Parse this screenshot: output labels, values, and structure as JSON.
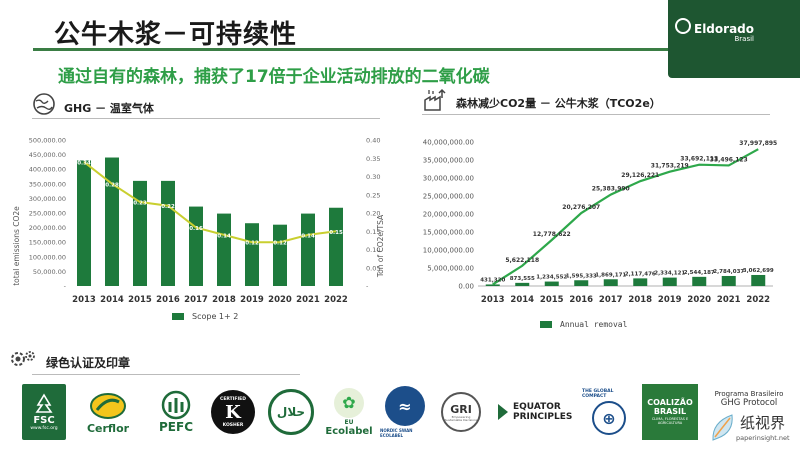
{
  "header": {
    "title": "公牛木浆－可持续性",
    "subtitle": "通过自有的森林，捕获了17倍于企业活动排放的二氧化碳",
    "brand_name": "Eldorado",
    "brand_sub": "Brasil"
  },
  "left_section": {
    "title": "GHG － 温室气体"
  },
  "right_section": {
    "title": "森林减少CO2量 － 公牛木浆（TCO2e）"
  },
  "bottom_section": {
    "title": "绿色认证及印章"
  },
  "certifications": {
    "fsc": "FSC",
    "fsc_url": "www.fsc.org",
    "cerflor": "Cerflor",
    "pefc": "PEFC",
    "kosher_top": "CERTIFIED",
    "kosher_mid": "K",
    "kosher_bottom": "KOSHER",
    "halal": "حلال",
    "ecolabel_eu": "EU",
    "ecolabel": "Ecolabel",
    "swan": "NORDIC SWAN ECOLABEL",
    "gri": "GRI",
    "gri_sub": "Empowering Sustainable Decisions",
    "equator1": "EQUATOR",
    "equator2": "PRINCIPLES",
    "global_compact": "THE GLOBAL COMPACT",
    "coalizao1": "COALIZÃO",
    "coalizao2": "BRASIL",
    "coalizao3": "CLIMA, FLORESTAS E AGRICULTURA",
    "ghg1": "Programa Brasileiro",
    "ghg2": "GHG Protocol"
  },
  "watermark": {
    "name": "纸视界",
    "url": "paperinsight.net"
  },
  "colors": {
    "bar_green": "#1e7a3c",
    "line_yellow": "#c9cf2f",
    "line_green": "#2ea84b",
    "accent": "#3a7d44"
  },
  "chart_data": [
    {
      "type": "bar",
      "categories": [
        "2013",
        "2014",
        "2015",
        "2016",
        "2017",
        "2018",
        "2019",
        "2020",
        "2021",
        "2022"
      ],
      "series": [
        {
          "name": "Scope 1+ 2",
          "type": "bar",
          "axis": "left",
          "values": [
            430000,
            440000,
            360000,
            360000,
            272000,
            248000,
            215000,
            210000,
            248000,
            268000
          ]
        },
        {
          "name": "",
          "type": "line",
          "axis": "right",
          "values": [
            0.34,
            0.28,
            0.23,
            0.22,
            0.16,
            0.14,
            0.12,
            0.12,
            0.14,
            0.15
          ]
        }
      ],
      "value_labels": [
        "0.34",
        "0.28",
        "0.23",
        "0.22",
        "0.16",
        "0.14",
        "0.12",
        "0.12",
        "0.14",
        "0.15"
      ],
      "ylabel": "total emissions CO2e",
      "y2label": "Ton of CO2e/TSA",
      "ylim": [
        0,
        500000
      ],
      "y2lim": [
        0,
        0.4
      ],
      "yticks": [
        "-",
        "50,000.00",
        "100,000.00",
        "150,000.00",
        "200,000.00",
        "250,000.00",
        "300,000.00",
        "350,000.00",
        "400,000.00",
        "450,000.00",
        "500,000.00"
      ],
      "y2ticks": [
        "-",
        "0.05",
        "0.10",
        "0.15",
        "0.20",
        "0.25",
        "0.30",
        "0.35",
        "0.40"
      ],
      "legend": "bottom"
    },
    {
      "type": "bar",
      "categories": [
        "2013",
        "2014",
        "2015",
        "2016",
        "2017",
        "2018",
        "2019",
        "2020",
        "2021",
        "2022"
      ],
      "series": [
        {
          "name": "Annual removal",
          "type": "bar",
          "values": [
            431320,
            873555,
            1234552,
            1595333,
            1869171,
            2117476,
            2334121,
            2544187,
            2784037,
            3062699
          ]
        },
        {
          "name": "",
          "type": "line",
          "values": [
            431320,
            5622118,
            12778622,
            20276207,
            25383990,
            29126221,
            31753219,
            33692113,
            33496123,
            37997895
          ]
        }
      ],
      "bar_labels": [
        "431,320",
        "873,555",
        "1,234,552",
        "1,595,333",
        "1,869,171",
        "2,117,476",
        "2,334,121",
        "2,544,187",
        "2,784,037",
        "3,062,699"
      ],
      "line_labels": [
        "",
        "5,622,118",
        "12,778,622",
        "20,276,207",
        "25,383,990",
        "29,126,221",
        "31,753,219",
        "33,692,113",
        "33,496,123",
        "37,997,895"
      ],
      "ylim": [
        0,
        40000000
      ],
      "yticks": [
        "0.00",
        "5,000,000.00",
        "10,000,000.00",
        "15,000,000.00",
        "20,000,000.00",
        "25,000,000.00",
        "30,000,000.00",
        "35,000,000.00",
        "40,000,000.00"
      ],
      "legend": "bottom"
    }
  ]
}
